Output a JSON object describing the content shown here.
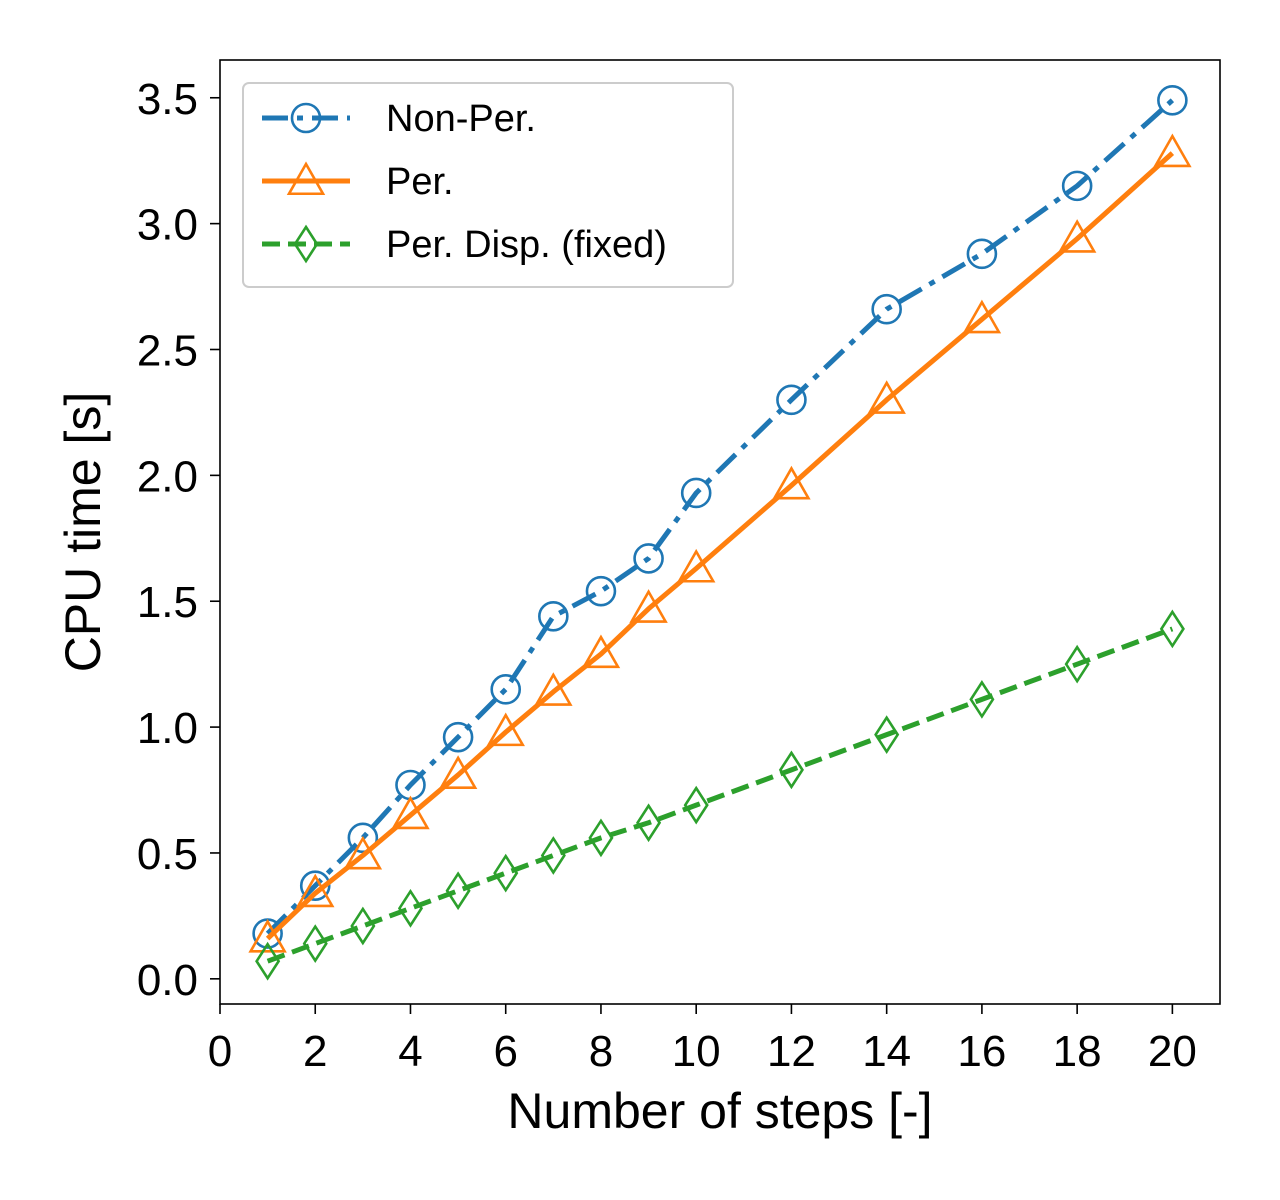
{
  "chart_data": {
    "type": "line",
    "xlabel": "Number of steps [-]",
    "ylabel": "CPU time [s]",
    "xlim": [
      0,
      21
    ],
    "ylim": [
      -0.1,
      3.65
    ],
    "xticks": [
      0,
      2,
      4,
      6,
      8,
      10,
      12,
      14,
      16,
      18,
      20
    ],
    "xtick_labels": [
      "0",
      "2",
      "4",
      "6",
      "8",
      "10",
      "12",
      "14",
      "16",
      "18",
      "20"
    ],
    "yticks": [
      0.0,
      0.5,
      1.0,
      1.5,
      2.0,
      2.5,
      3.0,
      3.5
    ],
    "ytick_labels": [
      "0.0",
      "0.5",
      "1.0",
      "1.5",
      "2.0",
      "2.5",
      "3.0",
      "3.5"
    ],
    "grid": false,
    "legend_position": "top-left",
    "series": [
      {
        "name": "Non-Per.",
        "color": "#1f77b4",
        "linestyle": "dashdot",
        "marker": "circle",
        "x": [
          1,
          2,
          3,
          4,
          5,
          6,
          7,
          8,
          9,
          10,
          12,
          14,
          16,
          18,
          20
        ],
        "y": [
          0.18,
          0.37,
          0.56,
          0.77,
          0.96,
          1.15,
          1.44,
          1.54,
          1.67,
          1.93,
          2.3,
          2.66,
          2.88,
          3.15,
          3.49
        ]
      },
      {
        "name": "Per.",
        "color": "#ff7f0e",
        "linestyle": "solid",
        "marker": "triangle",
        "x": [
          1,
          2,
          3,
          4,
          5,
          6,
          7,
          8,
          9,
          10,
          12,
          14,
          16,
          18,
          20
        ],
        "y": [
          0.16,
          0.34,
          0.49,
          0.65,
          0.81,
          0.98,
          1.14,
          1.29,
          1.47,
          1.63,
          1.96,
          2.3,
          2.62,
          2.94,
          3.28
        ]
      },
      {
        "name": "Per. Disp. (fixed)",
        "color": "#2ca02c",
        "linestyle": "dashed",
        "marker": "diamond",
        "x": [
          1,
          2,
          3,
          4,
          5,
          6,
          7,
          8,
          9,
          10,
          12,
          14,
          16,
          18,
          20
        ],
        "y": [
          0.07,
          0.14,
          0.21,
          0.28,
          0.35,
          0.42,
          0.49,
          0.56,
          0.62,
          0.69,
          0.83,
          0.97,
          1.11,
          1.25,
          1.39
        ]
      }
    ]
  }
}
